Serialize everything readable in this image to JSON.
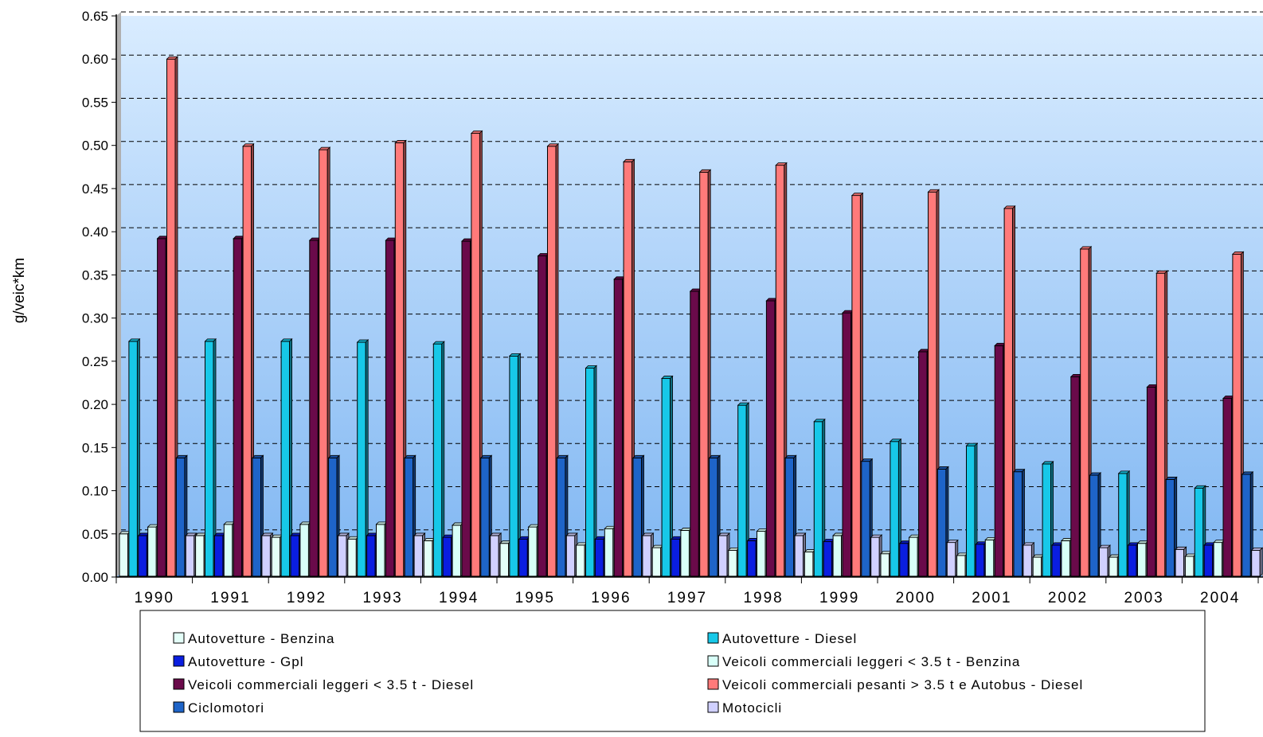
{
  "chart_data": {
    "type": "bar",
    "title": "",
    "ylabel": "g/veic*km",
    "xlabel": "",
    "ylim": [
      0,
      0.65
    ],
    "yticks": [
      "0.00",
      "0.05",
      "0.10",
      "0.15",
      "0.20",
      "0.25",
      "0.30",
      "0.35",
      "0.40",
      "0.45",
      "0.50",
      "0.55",
      "0.60",
      "0.65"
    ],
    "grid": true,
    "legend_position": "bottom",
    "categories": [
      "1990",
      "1991",
      "1992",
      "1993",
      "1994",
      "1995",
      "1996",
      "1997",
      "1998",
      "1999",
      "2000",
      "2001",
      "2002",
      "2003",
      "2004"
    ],
    "series": [
      {
        "name": "Autovetture - Benzina",
        "color": "#e4fff8",
        "values": [
          0.05,
          0.048,
          0.046,
          0.044,
          0.042,
          0.039,
          0.037,
          0.034,
          0.031,
          0.029,
          0.027,
          0.025,
          0.023,
          0.023,
          0.024
        ]
      },
      {
        "name": "Autovetture - Diesel",
        "color": "#17c8e8",
        "values": [
          0.273,
          0.273,
          0.273,
          0.272,
          0.27,
          0.256,
          0.242,
          0.23,
          0.199,
          0.18,
          0.157,
          0.152,
          0.131,
          0.12,
          0.103
        ]
      },
      {
        "name": "Autovetture - Gpl",
        "color": "#0a1ee0",
        "values": [
          0.048,
          0.048,
          0.048,
          0.048,
          0.046,
          0.044,
          0.044,
          0.044,
          0.042,
          0.041,
          0.039,
          0.038,
          0.037,
          0.037,
          0.037
        ]
      },
      {
        "name": "Veicoli commerciali leggeri < 3.5 t - Benzina",
        "color": "#d8fff8",
        "values": [
          0.058,
          0.061,
          0.061,
          0.061,
          0.06,
          0.058,
          0.056,
          0.054,
          0.053,
          0.048,
          0.046,
          0.043,
          0.042,
          0.039,
          0.04
        ]
      },
      {
        "name": "Veicoli commerciali leggeri < 3.5 t - Diesel",
        "color": "#6a0a4a",
        "values": [
          0.392,
          0.392,
          0.39,
          0.39,
          0.389,
          0.372,
          0.345,
          0.331,
          0.32,
          0.306,
          0.261,
          0.268,
          0.232,
          0.22,
          0.207
        ]
      },
      {
        "name": "Veicoli commerciali pesanti > 3.5 t e Autobus -  Diesel",
        "color": "#ff7a7a",
        "values": [
          0.6,
          0.499,
          0.495,
          0.503,
          0.514,
          0.499,
          0.481,
          0.469,
          0.477,
          0.442,
          0.446,
          0.427,
          0.38,
          0.352,
          0.374
        ]
      },
      {
        "name": "Ciclomotori",
        "color": "#1e64c8",
        "values": [
          0.138,
          0.138,
          0.138,
          0.138,
          0.138,
          0.138,
          0.138,
          0.138,
          0.138,
          0.134,
          0.125,
          0.122,
          0.118,
          0.113,
          0.119
        ]
      },
      {
        "name": "Motocicli",
        "color": "#d0d0ff",
        "values": [
          0.048,
          0.048,
          0.048,
          0.048,
          0.048,
          0.048,
          0.048,
          0.048,
          0.048,
          0.046,
          0.04,
          0.037,
          0.034,
          0.032,
          0.031
        ]
      }
    ]
  }
}
